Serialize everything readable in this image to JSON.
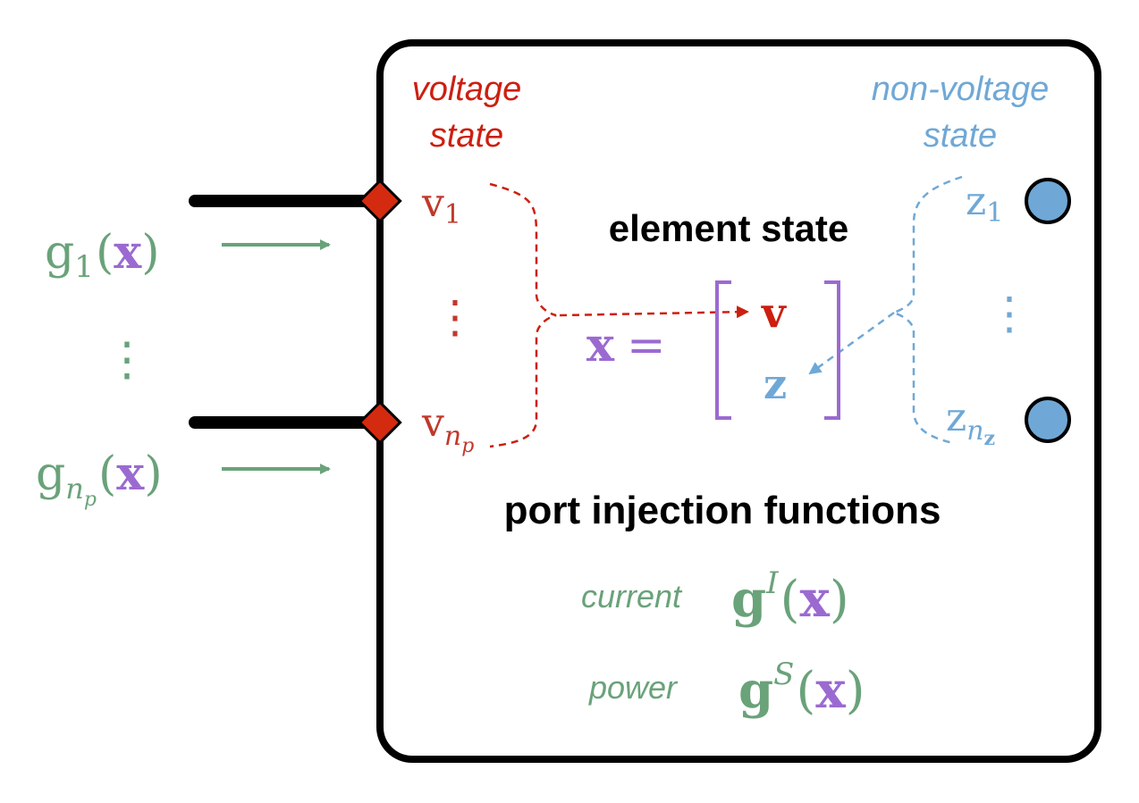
{
  "colors": {
    "red": "#cc1f10",
    "red_dark": "#c0392b",
    "blue": "#6fa8d6",
    "green": "#6aa27a",
    "purple": "#9b6ad1",
    "black": "#000000"
  },
  "labels": {
    "voltage_state_line1": "voltage",
    "voltage_state_line2": "state",
    "nonvoltage_state_line1": "non-voltage",
    "nonvoltage_state_line2": "state",
    "element_state": "element state",
    "port_injection": "port injection functions",
    "current": "current",
    "power": "power"
  },
  "math": {
    "g1_base": "g",
    "g1_sub": "1",
    "gnp_base": "g",
    "gnp_sub": "n",
    "gnp_subsub": "p",
    "x": "x",
    "lparen": "(",
    "rparen": ")",
    "vertical_dots": "⋮",
    "v_base": "v",
    "v1_sub": "1",
    "vnp_sub": "n",
    "vnp_subsub": "p",
    "z_base": "z",
    "z1_sub": "1",
    "znz_sub": "n",
    "znz_subsub": "z",
    "equals": "=",
    "vec_v": "v",
    "vec_z": "z",
    "gI_base": "g",
    "gI_sup": "I",
    "gS_base": "g",
    "gS_sup": "S"
  },
  "icons": {
    "port_marker": "red-diamond",
    "state_marker": "blue-circle"
  }
}
